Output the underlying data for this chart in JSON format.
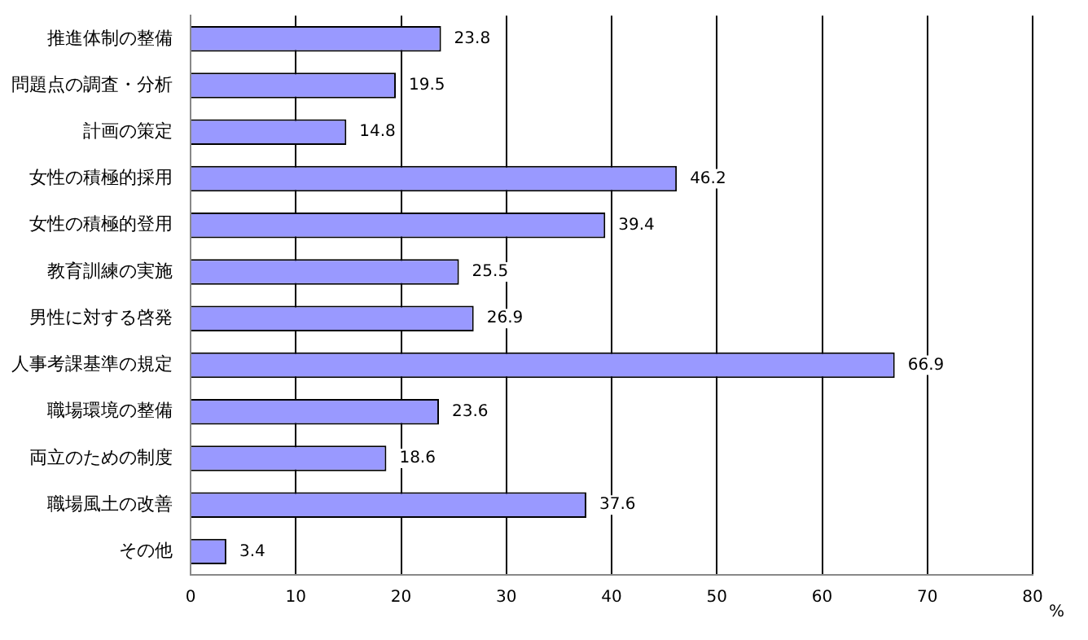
{
  "chart_data": {
    "type": "bar",
    "orientation": "horizontal",
    "xlabel": "%",
    "categories": [
      "推進体制の整備",
      "問題点の調査・分析",
      "計画の策定",
      "女性の積極的採用",
      "女性の積極的登用",
      "教育訓練の実施",
      "男性に対する啓発",
      "人事考課基準の規定",
      "職場環境の整備",
      "両立のための制度",
      "職場風土の改善",
      "その他"
    ],
    "values": [
      23.8,
      19.5,
      14.8,
      46.2,
      39.4,
      25.5,
      26.9,
      66.9,
      23.6,
      18.6,
      37.6,
      3.4
    ],
    "color": "#9999ff",
    "xlim": [
      0,
      80
    ],
    "xticks": [
      0,
      10,
      20,
      30,
      40,
      50,
      60,
      70,
      80
    ],
    "grid": "x",
    "data_labels": true,
    "legend": false
  }
}
